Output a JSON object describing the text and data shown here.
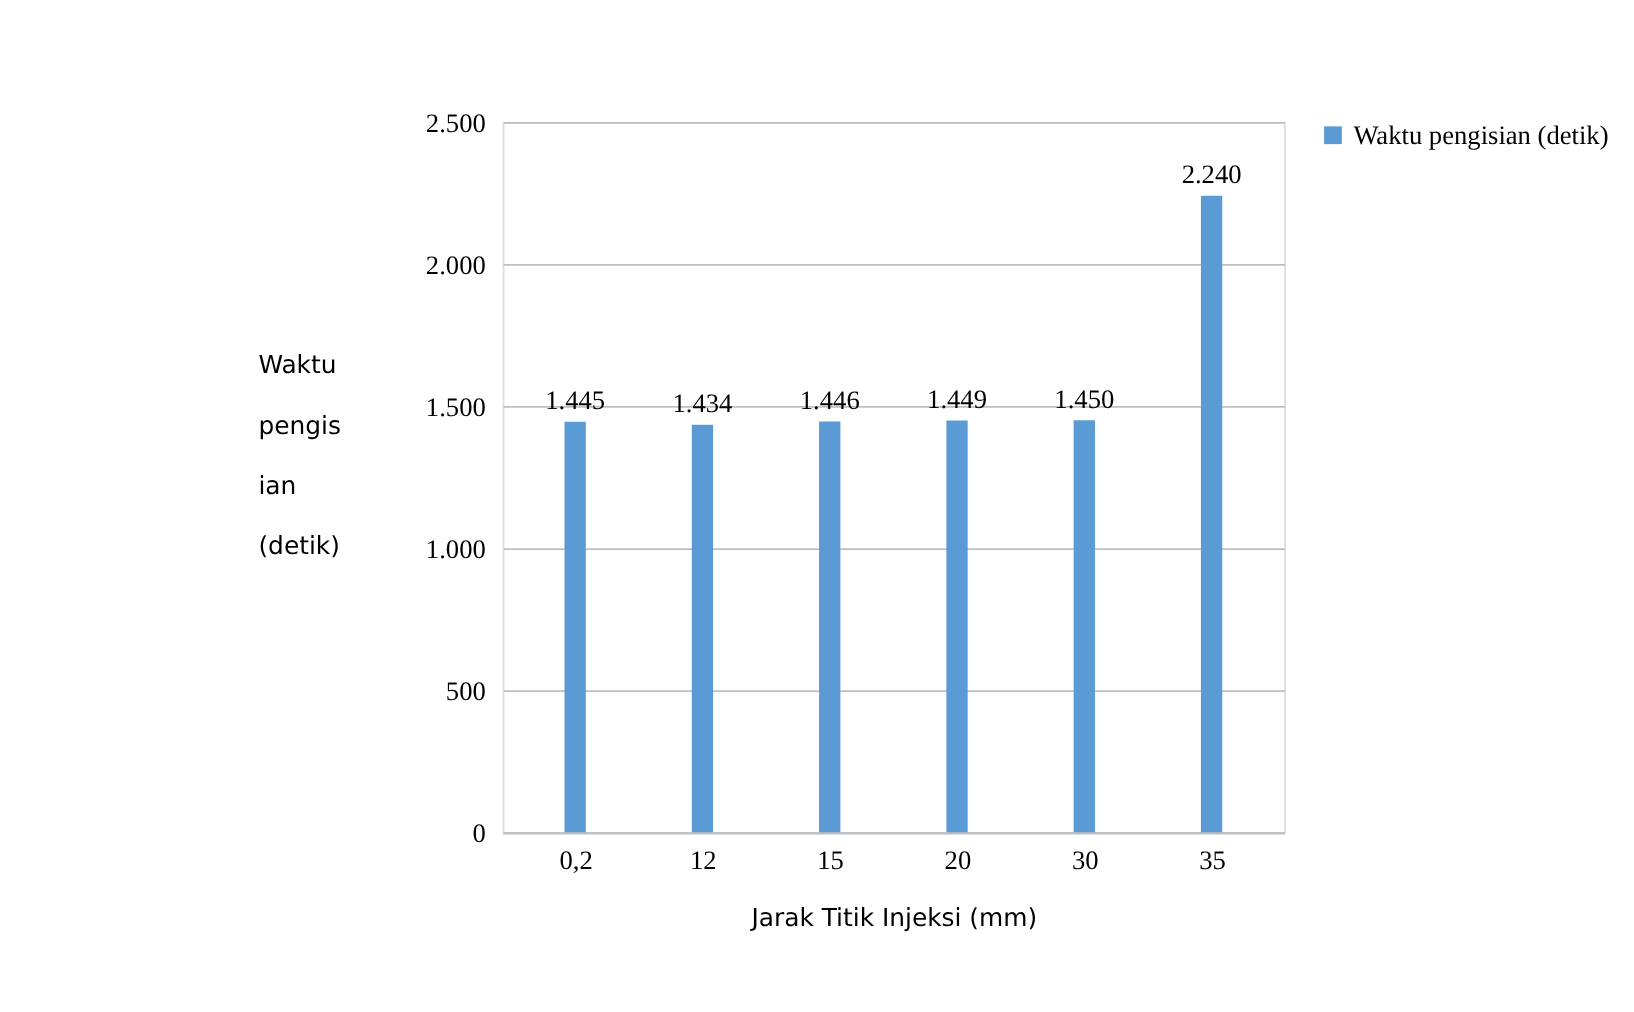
{
  "chart_data": {
    "type": "bar",
    "xlabel": "Jarak Titik Injeksi (mm)",
    "ylabel": "Waktu\npengis\nian\n(detik)",
    "categories": [
      "0,2",
      "12",
      "15",
      "20",
      "30",
      "35"
    ],
    "series": [
      {
        "name": "Waktu pengisian  (detik)",
        "color": "#5b9bd5",
        "values": [
          1445,
          1434,
          1446,
          1449,
          1450,
          2240
        ],
        "value_labels": [
          "1.445",
          "1.434",
          "1.446",
          "1.449",
          "1.450",
          "2.240"
        ]
      }
    ],
    "ylim": [
      0,
      2500
    ],
    "yticks": [
      {
        "value": 0,
        "label": "0"
      },
      {
        "value": 500,
        "label": "500"
      },
      {
        "value": 1000,
        "label": "1.000"
      },
      {
        "value": 1500,
        "label": "1.500"
      },
      {
        "value": 2000,
        "label": "2.000"
      },
      {
        "value": 2500,
        "label": "2.500"
      }
    ],
    "grid": "y",
    "legend": "right"
  }
}
